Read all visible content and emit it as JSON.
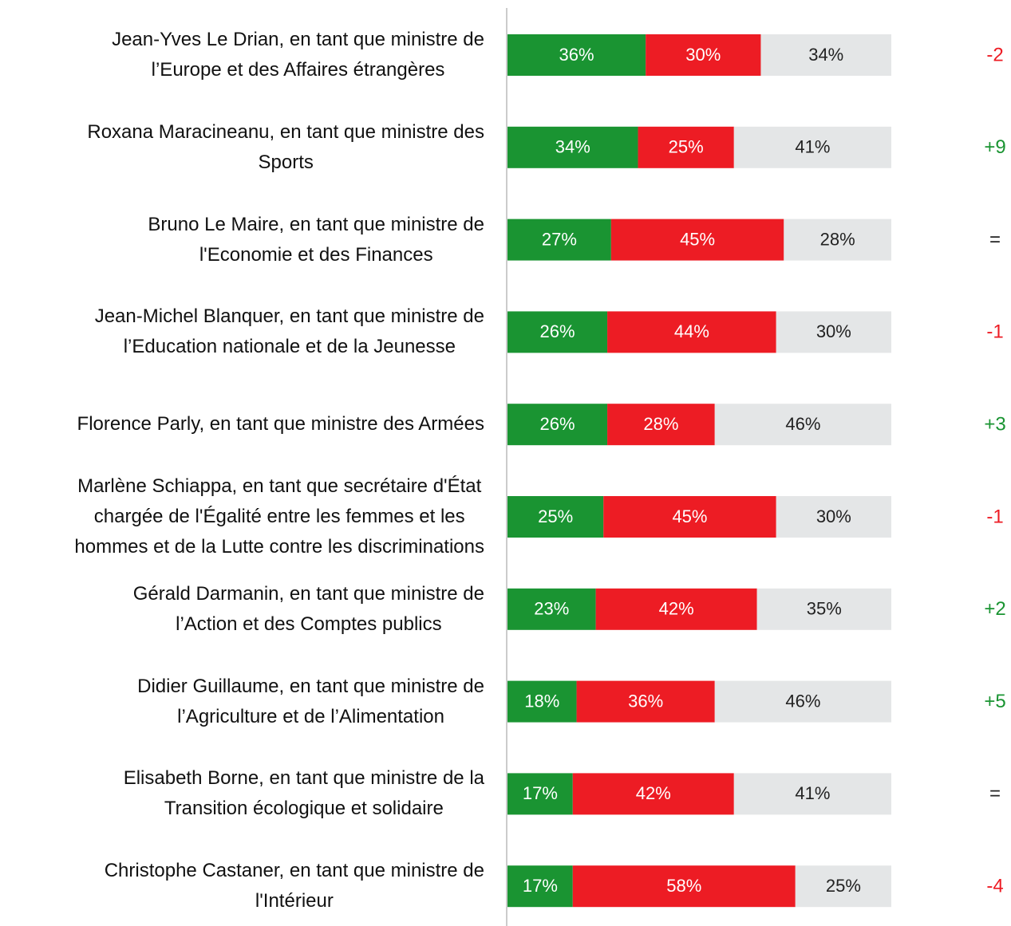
{
  "chart_data": {
    "type": "stacked_bar_horizontal",
    "categories": [
      "Jean-Yves Le Drian, en tant que ministre de\nl’Europe et des Affaires étrangères",
      "Roxana Maracineanu, en tant que ministre des\nSports",
      "Bruno Le Maire, en tant que ministre de\nl'Economie et des Finances",
      "Jean-Michel Blanquer, en tant que ministre de\nl’Education nationale et de la Jeunesse",
      "Florence Parly, en tant que ministre des Armées",
      "Marlène Schiappa, en tant que secrétaire d'État\nchargée de l'Égalité entre les femmes et les\nhommes et de la Lutte contre les discriminations",
      "Gérald Darmanin, en tant que ministre de\nl’Action et des Comptes publics",
      "Didier Guillaume, en tant que ministre de\nl’Agriculture et de l’Alimentation",
      "Elisabeth Borne, en tant que ministre de la\nTransition écologique et solidaire",
      "Christophe Castaner, en tant que ministre de\nl'Intérieur"
    ],
    "series": [
      {
        "color": "#1a9432",
        "label_color": "#ffffff",
        "values": [
          36,
          34,
          27,
          26,
          26,
          25,
          23,
          18,
          17,
          17
        ],
        "value_labels": [
          "36%",
          "34%",
          "27%",
          "26%",
          "26%",
          "25%",
          "23%",
          "18%",
          "17%",
          "17%"
        ]
      },
      {
        "color": "#ed1c24",
        "label_color": "#ffffff",
        "values": [
          30,
          25,
          45,
          44,
          28,
          45,
          42,
          36,
          42,
          58
        ],
        "value_labels": [
          "30%",
          "25%",
          "45%",
          "44%",
          "28%",
          "45%",
          "42%",
          "36%",
          "42%",
          "58%"
        ]
      },
      {
        "color": "#e4e6e7",
        "label_color": "#222222",
        "values": [
          34,
          41,
          28,
          30,
          46,
          30,
          35,
          46,
          41,
          25
        ],
        "value_labels": [
          "34%",
          "41%",
          "28%",
          "30%",
          "46%",
          "30%",
          "35%",
          "46%",
          "41%",
          "25%"
        ]
      }
    ],
    "changes": [
      "-2",
      "+9",
      "=",
      "-1",
      "+3",
      "-1",
      "+2",
      "+5",
      "=",
      "-4"
    ],
    "change_colors": {
      "up": "#1a9432",
      "down": "#ed1c24",
      "same": "#222222"
    },
    "xlim": [
      0,
      100
    ]
  }
}
